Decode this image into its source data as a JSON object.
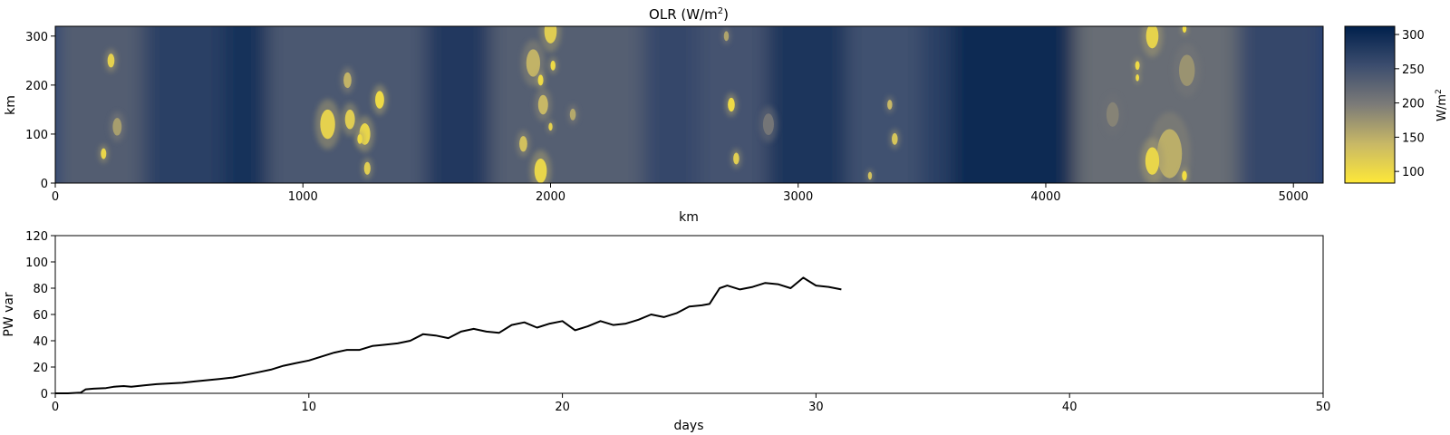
{
  "chart_data": [
    {
      "type": "heatmap",
      "title": "OLR (W/m",
      "title_sup": "2",
      "title_close": ")",
      "xlabel": "km",
      "ylabel": "km",
      "xlim": [
        0,
        5120
      ],
      "ylim": [
        0,
        320
      ],
      "xticks": [
        0,
        1000,
        2000,
        3000,
        4000,
        5000
      ],
      "yticks": [
        0,
        100,
        200,
        300
      ],
      "colorbar": {
        "label": "W/m",
        "label_sup": "2",
        "ticks": [
          100,
          150,
          200,
          250,
          300
        ],
        "range": [
          83,
          312
        ],
        "colormap": "cividis",
        "low_color": "#fee838",
        "mid_color": "#7c7b78",
        "high_color": "#00204c"
      },
      "background_bands": [
        {
          "x0": 0,
          "x1": 360,
          "value": 235
        },
        {
          "x0": 360,
          "x1": 680,
          "value": 270
        },
        {
          "x0": 680,
          "x1": 860,
          "value": 288
        },
        {
          "x0": 860,
          "x1": 1500,
          "value": 240
        },
        {
          "x0": 1500,
          "x1": 1760,
          "value": 280
        },
        {
          "x0": 1760,
          "x1": 2380,
          "value": 232
        },
        {
          "x0": 2380,
          "x1": 2600,
          "value": 262
        },
        {
          "x0": 2600,
          "x1": 2880,
          "value": 248
        },
        {
          "x0": 2880,
          "x1": 3200,
          "value": 285
        },
        {
          "x0": 3200,
          "x1": 3500,
          "value": 250
        },
        {
          "x0": 3500,
          "x1": 3620,
          "value": 270
        },
        {
          "x0": 3620,
          "x1": 4120,
          "value": 300
        },
        {
          "x0": 4120,
          "x1": 4780,
          "value": 215
        },
        {
          "x0": 4780,
          "x1": 5120,
          "value": 262
        }
      ],
      "convective_cells": [
        {
          "x": 225,
          "y": 250,
          "r": 14,
          "value": 110
        },
        {
          "x": 195,
          "y": 60,
          "r": 11,
          "value": 105
        },
        {
          "x": 250,
          "y": 115,
          "r": 18,
          "value": 165
        },
        {
          "x": 1180,
          "y": 210,
          "r": 16,
          "value": 145
        },
        {
          "x": 1100,
          "y": 120,
          "r": 30,
          "value": 110
        },
        {
          "x": 1190,
          "y": 130,
          "r": 20,
          "value": 115
        },
        {
          "x": 1250,
          "y": 100,
          "r": 22,
          "value": 105
        },
        {
          "x": 1310,
          "y": 170,
          "r": 18,
          "value": 100
        },
        {
          "x": 1230,
          "y": 90,
          "r": 10,
          "value": 98
        },
        {
          "x": 1260,
          "y": 30,
          "r": 13,
          "value": 115
        },
        {
          "x": 2000,
          "y": 310,
          "r": 25,
          "value": 115
        },
        {
          "x": 1930,
          "y": 245,
          "r": 28,
          "value": 145
        },
        {
          "x": 1960,
          "y": 210,
          "r": 11,
          "value": 100
        },
        {
          "x": 2010,
          "y": 240,
          "r": 10,
          "value": 100
        },
        {
          "x": 1970,
          "y": 160,
          "r": 20,
          "value": 140
        },
        {
          "x": 1890,
          "y": 80,
          "r": 16,
          "value": 130
        },
        {
          "x": 1960,
          "y": 25,
          "r": 25,
          "value": 105
        },
        {
          "x": 2090,
          "y": 140,
          "r": 12,
          "value": 155
        },
        {
          "x": 2000,
          "y": 115,
          "r": 8,
          "value": 110
        },
        {
          "x": 2730,
          "y": 160,
          "r": 14,
          "value": 100
        },
        {
          "x": 2750,
          "y": 50,
          "r": 12,
          "value": 115
        },
        {
          "x": 2710,
          "y": 300,
          "r": 10,
          "value": 160
        },
        {
          "x": 3370,
          "y": 160,
          "r": 10,
          "value": 140
        },
        {
          "x": 3390,
          "y": 90,
          "r": 12,
          "value": 125
        },
        {
          "x": 3290,
          "y": 15,
          "r": 8,
          "value": 130
        },
        {
          "x": 4430,
          "y": 300,
          "r": 25,
          "value": 108
        },
        {
          "x": 4370,
          "y": 240,
          "r": 9,
          "value": 100
        },
        {
          "x": 4370,
          "y": 215,
          "r": 7,
          "value": 100
        },
        {
          "x": 4570,
          "y": 230,
          "r": 32,
          "value": 175
        },
        {
          "x": 4500,
          "y": 60,
          "r": 50,
          "value": 150
        },
        {
          "x": 4430,
          "y": 45,
          "r": 28,
          "value": 105
        },
        {
          "x": 4560,
          "y": 315,
          "r": 8,
          "value": 95
        },
        {
          "x": 4560,
          "y": 15,
          "r": 10,
          "value": 95
        },
        {
          "x": 4270,
          "y": 140,
          "r": 25,
          "value": 190
        },
        {
          "x": 2880,
          "y": 120,
          "r": 22,
          "value": 205
        }
      ]
    },
    {
      "type": "line",
      "title": "",
      "xlabel": "days",
      "ylabel": "PW var",
      "xlim": [
        0,
        50
      ],
      "ylim": [
        0,
        120
      ],
      "xticks": [
        0,
        10,
        20,
        30,
        40,
        50
      ],
      "yticks": [
        0,
        20,
        40,
        60,
        80,
        100,
        120
      ],
      "series": [
        {
          "color": "#000000",
          "x": [
            0,
            0.5,
            1.0,
            1.2,
            1.5,
            2.0,
            2.3,
            2.7,
            3.0,
            3.5,
            4.0,
            4.5,
            5.0,
            5.5,
            6.0,
            6.5,
            7.0,
            7.5,
            8.0,
            8.5,
            9.0,
            9.5,
            10.0,
            10.5,
            11.0,
            11.5,
            12.0,
            12.5,
            13.0,
            13.5,
            14.0,
            14.5,
            15.0,
            15.5,
            16.0,
            16.5,
            17.0,
            17.5,
            18.0,
            18.5,
            19.0,
            19.5,
            20.0,
            20.5,
            21.0,
            21.5,
            22.0,
            22.5,
            23.0,
            23.5,
            24.0,
            24.5,
            25.0,
            25.5,
            25.8,
            26.2,
            26.5,
            27.0,
            27.5,
            28.0,
            28.5,
            29.0,
            29.5,
            30.0,
            30.5,
            31.0
          ],
          "y": [
            0,
            0,
            0.5,
            3,
            3.5,
            4,
            5,
            5.5,
            5,
            6,
            7,
            7.5,
            8,
            9,
            10,
            11,
            12,
            14,
            16,
            18,
            21,
            23,
            25,
            28,
            31,
            33,
            33,
            36,
            37,
            38,
            40,
            45,
            44,
            42,
            47,
            49,
            47,
            46,
            52,
            54,
            50,
            53,
            55,
            48,
            51,
            55,
            52,
            53,
            56,
            60,
            58,
            61,
            66,
            67,
            68,
            80,
            82,
            79,
            81,
            84,
            83,
            80,
            88,
            82,
            81,
            79
          ]
        }
      ]
    }
  ]
}
